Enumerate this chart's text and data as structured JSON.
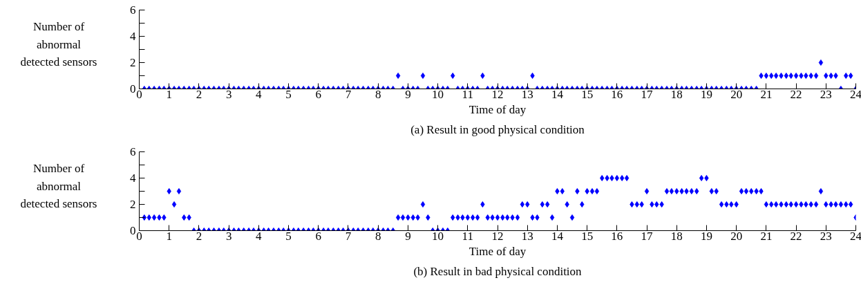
{
  "chart_data": [
    {
      "type": "scatter",
      "title": "(a) Result in good physical condition",
      "xlabel": "Time of day",
      "ylabel": "Number of abnormal detected sensors",
      "x": [
        0.17,
        0.33,
        0.5,
        0.67,
        0.83,
        1,
        1.17,
        1.33,
        1.5,
        1.67,
        1.83,
        2,
        2.17,
        2.33,
        2.5,
        2.67,
        2.83,
        3,
        3.17,
        3.33,
        3.5,
        3.67,
        3.83,
        4,
        4.17,
        4.33,
        4.5,
        4.67,
        4.83,
        5,
        5.17,
        5.33,
        5.5,
        5.67,
        5.83,
        6,
        6.17,
        6.33,
        6.5,
        6.67,
        6.83,
        7,
        7.17,
        7.33,
        7.5,
        7.67,
        7.83,
        8,
        8.17,
        8.33,
        8.5,
        8.67,
        8.83,
        9,
        9.17,
        9.33,
        9.5,
        9.67,
        9.83,
        10,
        10.17,
        10.33,
        10.5,
        10.67,
        10.83,
        11,
        11.17,
        11.33,
        11.5,
        11.67,
        11.83,
        12,
        12.17,
        12.33,
        12.5,
        12.67,
        12.83,
        13,
        13.17,
        13.33,
        13.5,
        13.67,
        13.83,
        14,
        14.17,
        14.33,
        14.5,
        14.67,
        14.83,
        15,
        15.17,
        15.33,
        15.5,
        15.67,
        15.83,
        16,
        16.17,
        16.33,
        16.5,
        16.67,
        16.83,
        17,
        17.17,
        17.33,
        17.5,
        17.67,
        17.83,
        18,
        18.17,
        18.33,
        18.5,
        18.67,
        18.83,
        19,
        19.17,
        19.33,
        19.5,
        19.67,
        19.83,
        20,
        20.17,
        20.33,
        20.5,
        20.67,
        20.83,
        21,
        21.17,
        21.33,
        21.5,
        21.67,
        21.83,
        22,
        22.17,
        22.33,
        22.5,
        22.67,
        22.83,
        23,
        23.17,
        23.33,
        23.5,
        23.67,
        23.83,
        24
      ],
      "series": [
        {
          "color": "#0000ff",
          "values": [
            0,
            0,
            0,
            0,
            0,
            0,
            0,
            0,
            0,
            0,
            0,
            0,
            0,
            0,
            0,
            0,
            0,
            0,
            0,
            0,
            0,
            0,
            0,
            0,
            0,
            0,
            0,
            0,
            0,
            0,
            0,
            0,
            0,
            0,
            0,
            0,
            0,
            0,
            0,
            0,
            0,
            0,
            0,
            0,
            0,
            0,
            0,
            0,
            0,
            0,
            0,
            1,
            0,
            0,
            0,
            0,
            1,
            0,
            0,
            0,
            0,
            0,
            1,
            0,
            0,
            0,
            0,
            0,
            1,
            0,
            0,
            0,
            0,
            0,
            0,
            0,
            0,
            0,
            1,
            0,
            0,
            0,
            0,
            0,
            0,
            0,
            0,
            0,
            0,
            0,
            0,
            0,
            0,
            0,
            0,
            0,
            0,
            0,
            0,
            0,
            0,
            0,
            0,
            0,
            0,
            0,
            0,
            0,
            0,
            0,
            0,
            0,
            0,
            0,
            0,
            0,
            0,
            0,
            0,
            0,
            0,
            0,
            0,
            0,
            1,
            1,
            1,
            1,
            1,
            1,
            1,
            1,
            1,
            1,
            1,
            1,
            2,
            1,
            1,
            1,
            0,
            1,
            1,
            0
          ]
        }
      ],
      "xlim": [
        0,
        24
      ],
      "ylim": [
        0,
        6
      ],
      "xticks": [
        0,
        1,
        2,
        3,
        4,
        5,
        6,
        7,
        8,
        9,
        10,
        11,
        12,
        13,
        14,
        15,
        16,
        17,
        18,
        19,
        20,
        21,
        22,
        23,
        24
      ],
      "yticks": [
        0,
        {
          "value": 1,
          "label": null
        },
        2,
        {
          "value": 3,
          "label": null
        },
        4,
        {
          "value": 5,
          "label": null
        },
        6
      ],
      "grid": false,
      "marker": "diamond"
    },
    {
      "type": "scatter",
      "title": "(b) Result in bad physical condition",
      "xlabel": "Time of day",
      "ylabel": "Number of abnormal detected sensors",
      "x": [
        0.17,
        0.33,
        0.5,
        0.67,
        0.83,
        1,
        1.17,
        1.33,
        1.5,
        1.67,
        1.83,
        2,
        2.17,
        2.33,
        2.5,
        2.67,
        2.83,
        3,
        3.17,
        3.33,
        3.5,
        3.67,
        3.83,
        4,
        4.17,
        4.33,
        4.5,
        4.67,
        4.83,
        5,
        5.17,
        5.33,
        5.5,
        5.67,
        5.83,
        6,
        6.17,
        6.33,
        6.5,
        6.67,
        6.83,
        7,
        7.17,
        7.33,
        7.5,
        7.67,
        7.83,
        8,
        8.17,
        8.33,
        8.5,
        8.67,
        8.83,
        9,
        9.17,
        9.33,
        9.5,
        9.67,
        9.83,
        10,
        10.17,
        10.33,
        10.5,
        10.67,
        10.83,
        11,
        11.17,
        11.33,
        11.5,
        11.67,
        11.83,
        12,
        12.17,
        12.33,
        12.5,
        12.67,
        12.83,
        13,
        13.17,
        13.33,
        13.5,
        13.67,
        13.83,
        14,
        14.17,
        14.33,
        14.5,
        14.67,
        14.83,
        15,
        15.17,
        15.33,
        15.5,
        15.67,
        15.83,
        16,
        16.17,
        16.33,
        16.5,
        16.67,
        16.83,
        17,
        17.17,
        17.33,
        17.5,
        17.67,
        17.83,
        18,
        18.17,
        18.33,
        18.5,
        18.67,
        18.83,
        19,
        19.17,
        19.33,
        19.5,
        19.67,
        19.83,
        20,
        20.17,
        20.33,
        20.5,
        20.67,
        20.83,
        21,
        21.17,
        21.33,
        21.5,
        21.67,
        21.83,
        22,
        22.17,
        22.33,
        22.5,
        22.67,
        22.83,
        23,
        23.17,
        23.33,
        23.5,
        23.67,
        23.83,
        24
      ],
      "series": [
        {
          "color": "#0000ff",
          "values": [
            1,
            1,
            1,
            1,
            1,
            3,
            2,
            3,
            1,
            1,
            0,
            0,
            0,
            0,
            0,
            0,
            0,
            0,
            0,
            0,
            0,
            0,
            0,
            0,
            0,
            0,
            0,
            0,
            0,
            0,
            0,
            0,
            0,
            0,
            0,
            0,
            0,
            0,
            0,
            0,
            0,
            0,
            0,
            0,
            0,
            0,
            0,
            0,
            0,
            0,
            0,
            1,
            1,
            1,
            1,
            1,
            2,
            1,
            0,
            0,
            0,
            0,
            1,
            1,
            1,
            1,
            1,
            1,
            2,
            1,
            1,
            1,
            1,
            1,
            1,
            1,
            2,
            2,
            1,
            1,
            2,
            2,
            1,
            3,
            3,
            2,
            1,
            3,
            2,
            3,
            3,
            3,
            4,
            4,
            4,
            4,
            4,
            4,
            2,
            2,
            2,
            3,
            2,
            2,
            2,
            3,
            3,
            3,
            3,
            3,
            3,
            3,
            4,
            4,
            3,
            3,
            2,
            2,
            2,
            2,
            3,
            3,
            3,
            3,
            3,
            2,
            2,
            2,
            2,
            2,
            2,
            2,
            2,
            2,
            2,
            2,
            3,
            2,
            2,
            2,
            2,
            2,
            2,
            1
          ]
        }
      ],
      "xlim": [
        0,
        24
      ],
      "ylim": [
        0,
        6
      ],
      "xticks": [
        0,
        1,
        2,
        3,
        4,
        5,
        6,
        7,
        8,
        9,
        10,
        11,
        12,
        13,
        14,
        15,
        16,
        17,
        18,
        19,
        20,
        21,
        22,
        23,
        24
      ],
      "yticks": [
        0,
        {
          "value": 1,
          "label": null
        },
        2,
        {
          "value": 3,
          "label": null
        },
        4,
        {
          "value": 5,
          "label": null
        },
        6
      ],
      "grid": false,
      "marker": "diamond"
    }
  ]
}
